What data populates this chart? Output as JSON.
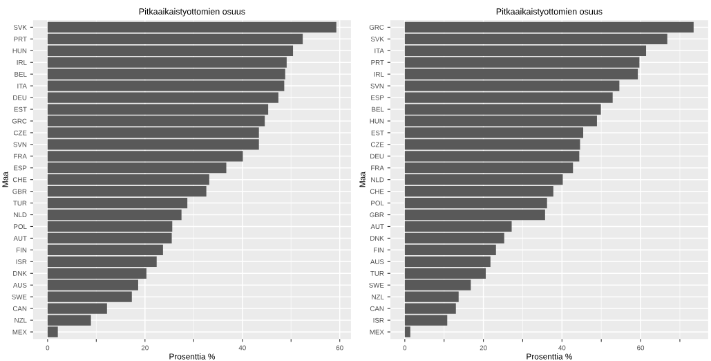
{
  "chart_data": [
    {
      "type": "bar",
      "orientation": "horizontal",
      "title": "Pitkaaikaistyottomien osuus",
      "xlabel": "Prosenttia %",
      "ylabel": "Maa",
      "grid": true,
      "categories": [
        "SVK",
        "PRT",
        "HUN",
        "IRL",
        "BEL",
        "ITA",
        "DEU",
        "EST",
        "GRC",
        "CZE",
        "SVN",
        "FRA",
        "ESP",
        "CHE",
        "GBR",
        "TUR",
        "NLD",
        "POL",
        "AUT",
        "FIN",
        "ISR",
        "DNK",
        "AUS",
        "SWE",
        "CAN",
        "NZL",
        "MEX"
      ],
      "values": [
        59.3,
        52.4,
        50.4,
        49.1,
        48.8,
        48.6,
        47.4,
        45.3,
        44.6,
        43.4,
        43.4,
        40.1,
        36.7,
        33.2,
        32.6,
        28.7,
        27.5,
        25.6,
        25.5,
        23.7,
        22.4,
        20.3,
        18.6,
        17.3,
        12.2,
        8.9,
        2.1
      ],
      "color": "#595959",
      "xlim": [
        -2.97,
        62.3
      ],
      "xticks": [
        0,
        {
          "value": 10,
          "label": null
        },
        20,
        {
          "value": 30,
          "label": null
        },
        40,
        {
          "value": 50,
          "label": null
        },
        60
      ]
    },
    {
      "type": "bar",
      "orientation": "horizontal",
      "title": "Pitkaaikaistyottomien osuus",
      "xlabel": "Prosenttia %",
      "ylabel": "Maa",
      "grid": true,
      "categories": [
        "GRC",
        "SVK",
        "ITA",
        "PRT",
        "IRL",
        "SVN",
        "ESP",
        "BEL",
        "HUN",
        "EST",
        "CZE",
        "DEU",
        "FRA",
        "NLD",
        "CHE",
        "POL",
        "GBR",
        "AUT",
        "DNK",
        "FIN",
        "AUS",
        "TUR",
        "SWE",
        "NZL",
        "CAN",
        "ISR",
        "MEX"
      ],
      "values": [
        73.5,
        66.8,
        61.4,
        59.7,
        59.3,
        54.6,
        52.9,
        49.9,
        48.9,
        45.4,
        44.6,
        44.4,
        42.8,
        40.2,
        37.8,
        36.2,
        35.7,
        27.2,
        25.3,
        23.2,
        21.8,
        20.6,
        16.8,
        13.7,
        13.0,
        10.8,
        1.4
      ],
      "color": "#595959",
      "xlim": [
        -3.68,
        77.2
      ],
      "xticks": [
        0,
        {
          "value": 10,
          "label": null
        },
        20,
        {
          "value": 30,
          "label": null
        },
        40,
        {
          "value": 50,
          "label": null
        },
        60,
        {
          "value": 70,
          "label": null
        }
      ]
    }
  ]
}
